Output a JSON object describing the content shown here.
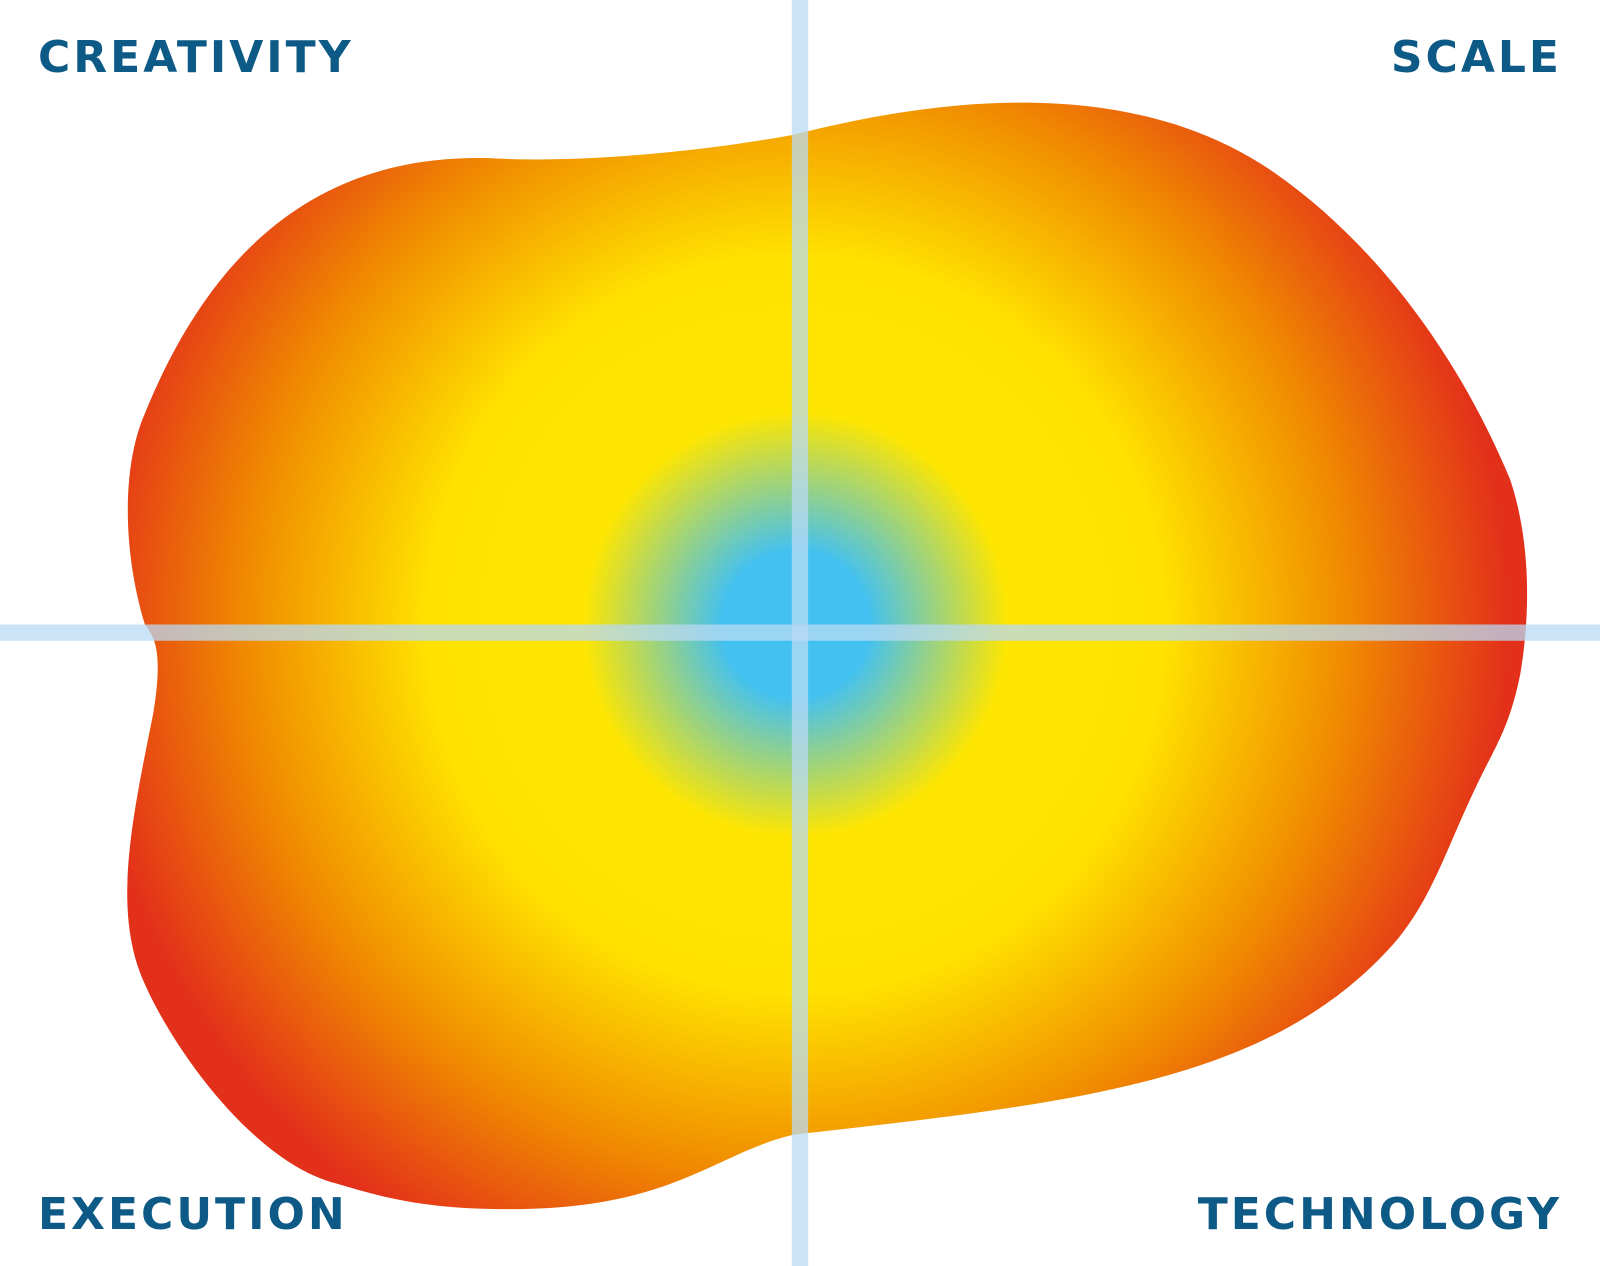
{
  "labels": {
    "top_left": "CREATIVITY",
    "top_right": "SCALE",
    "bottom_left": "EXECUTION",
    "bottom_right": "TECHNOLOGY"
  }
}
